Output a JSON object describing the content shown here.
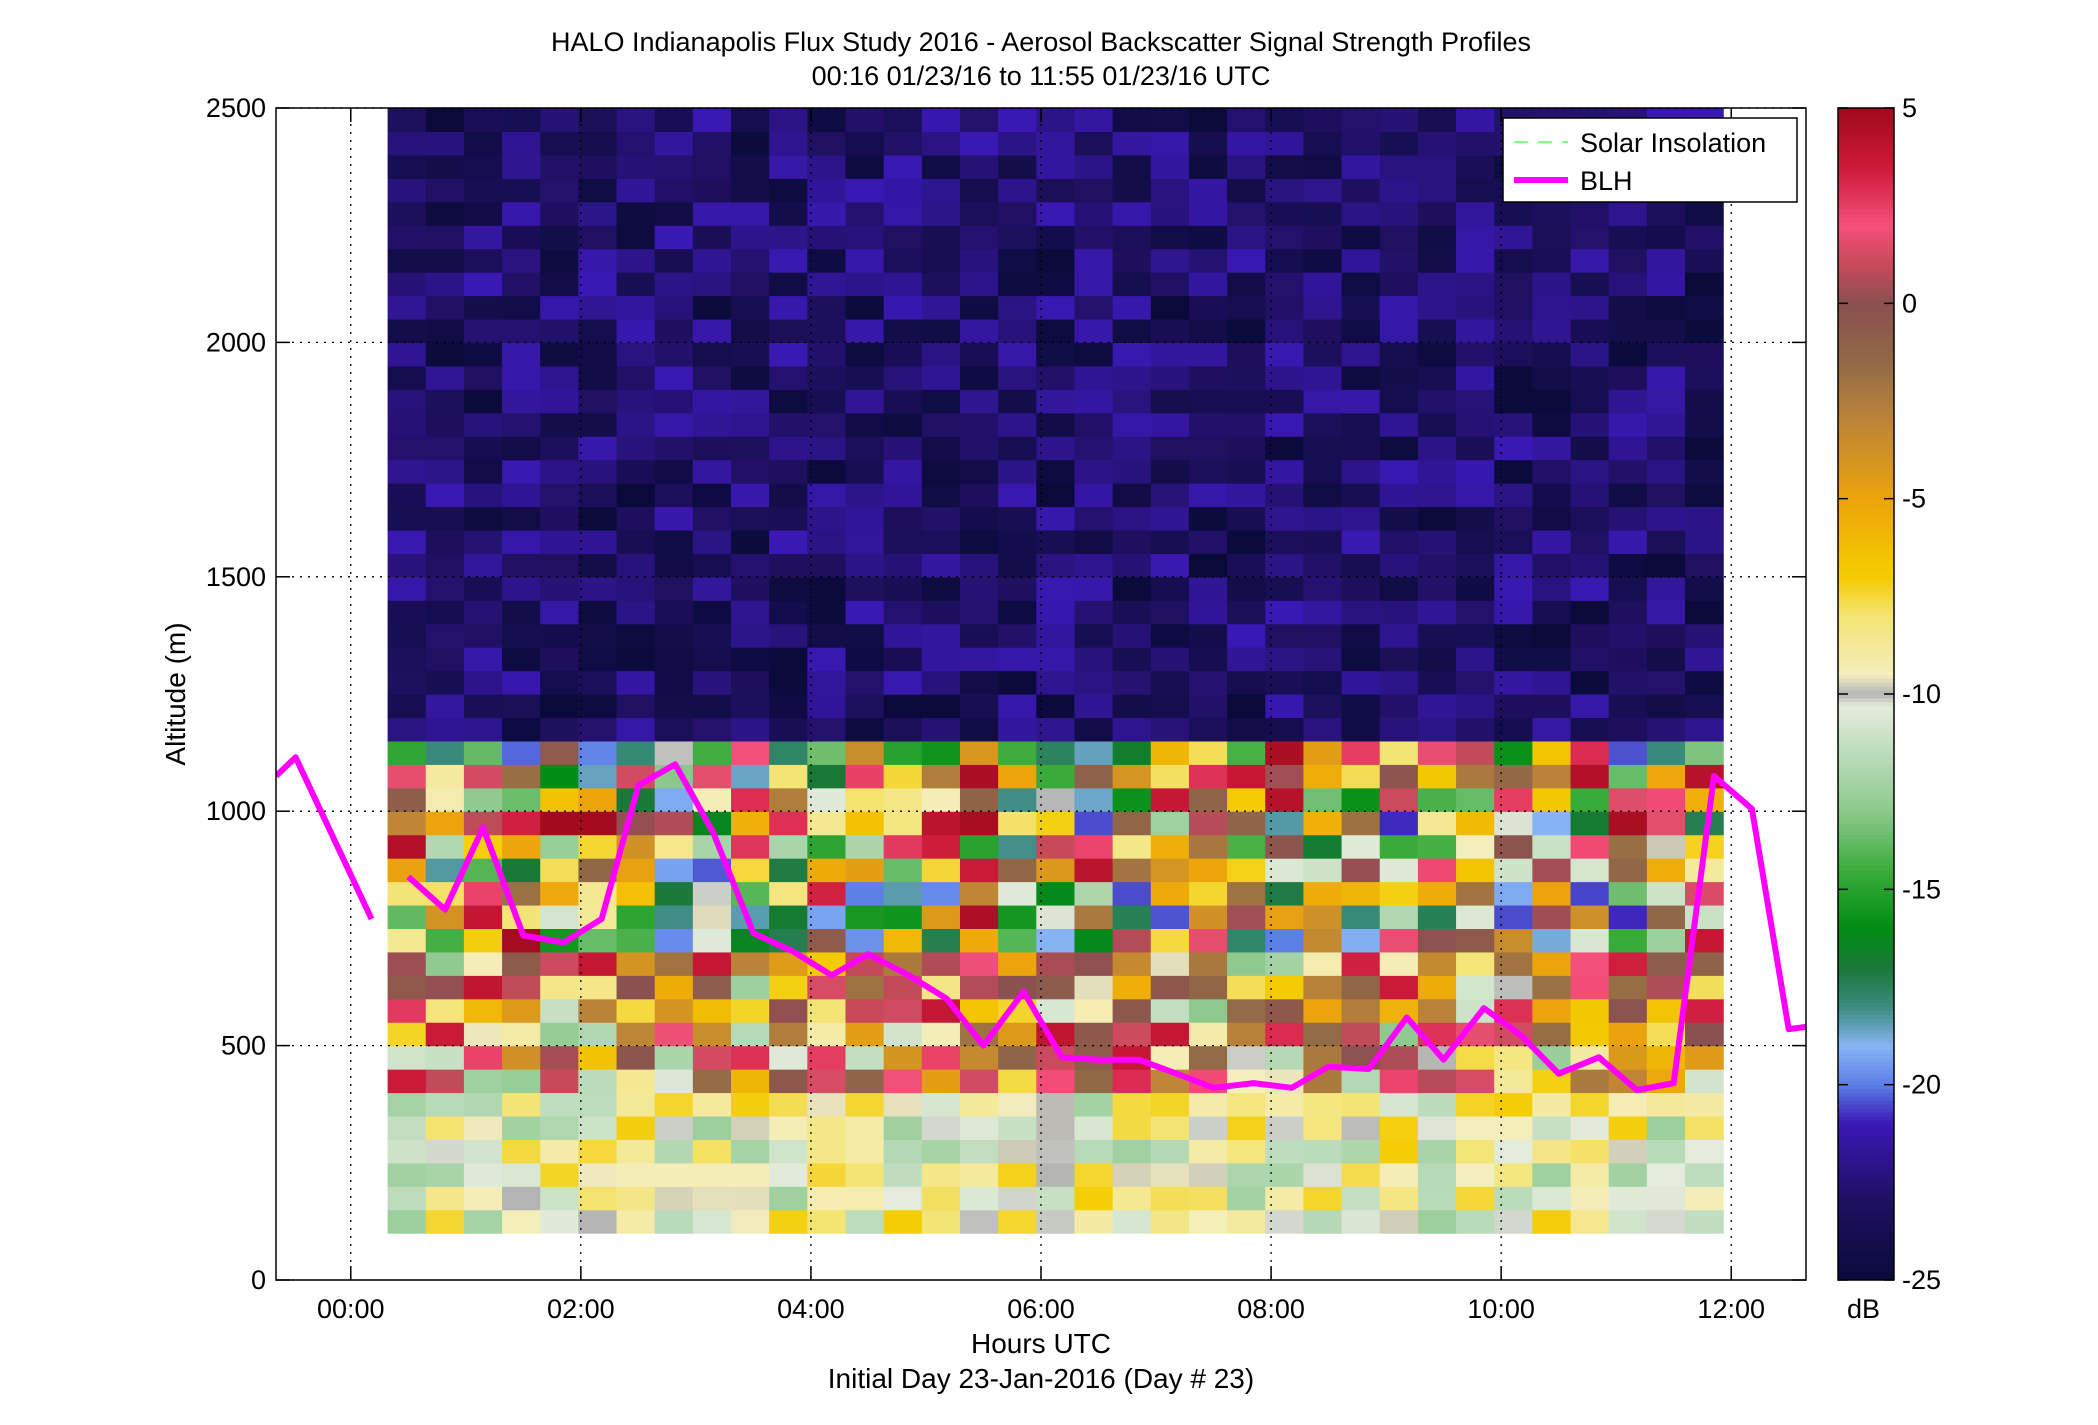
{
  "chart_data": {
    "type": "heatmap",
    "title": "HALO Indianapolis Flux Study 2016 - Aerosol Backscatter Signal Strength Profiles",
    "subtitle": "00:16 01/23/16 to 11:55 01/23/16  UTC",
    "xlabel": "Hours UTC",
    "xlabel2": "Initial Day 23-Jan-2016 (Day # 23)",
    "ylabel": "Altitude (m)",
    "xlim": [
      -0.65,
      12.65
    ],
    "ylim": [
      0,
      2500
    ],
    "x_ticks": [
      {
        "value": 0,
        "label": "00:00"
      },
      {
        "value": 2,
        "label": "02:00"
      },
      {
        "value": 4,
        "label": "04:00"
      },
      {
        "value": 6,
        "label": "06:00"
      },
      {
        "value": 8,
        "label": "08:00"
      },
      {
        "value": 10,
        "label": "10:00"
      },
      {
        "value": 12,
        "label": "12:00"
      }
    ],
    "y_ticks": [
      {
        "value": 0,
        "label": "0"
      },
      {
        "value": 500,
        "label": "500"
      },
      {
        "value": 1000,
        "label": "1000"
      },
      {
        "value": 1500,
        "label": "1500"
      },
      {
        "value": 2000,
        "label": "2000"
      },
      {
        "value": 2500,
        "label": "2500"
      }
    ],
    "grid": true,
    "legend_position": "top-right",
    "colorbar": {
      "min": -25,
      "max": 5,
      "unit": "dB",
      "ticks": [
        {
          "value": 5,
          "label": "5"
        },
        {
          "value": 0,
          "label": "0"
        },
        {
          "value": -5,
          "label": "-5"
        },
        {
          "value": -10,
          "label": "-10"
        },
        {
          "value": -15,
          "label": "-15"
        },
        {
          "value": -20,
          "label": "-20"
        },
        {
          "value": -25,
          "label": "-25"
        }
      ],
      "stops": [
        {
          "value": -25,
          "color": "#0a0a3a"
        },
        {
          "value": -23,
          "color": "#1f1060"
        },
        {
          "value": -21,
          "color": "#3a18b4"
        },
        {
          "value": -20,
          "color": "#5b7ee6"
        },
        {
          "value": -19,
          "color": "#88b4f4"
        },
        {
          "value": -18,
          "color": "#3c8c80"
        },
        {
          "value": -17,
          "color": "#1a7838"
        },
        {
          "value": -16,
          "color": "#008c14"
        },
        {
          "value": -14.5,
          "color": "#3cac3c"
        },
        {
          "value": -13,
          "color": "#8cc88c"
        },
        {
          "value": -11.5,
          "color": "#bcdcbc"
        },
        {
          "value": -10.3,
          "color": "#e6ecdc"
        },
        {
          "value": -10,
          "color": "#b4b4b4"
        },
        {
          "value": -9.5,
          "color": "#f4eebe"
        },
        {
          "value": -8,
          "color": "#f4e474"
        },
        {
          "value": -7,
          "color": "#f4cc00"
        },
        {
          "value": -5,
          "color": "#eca40c"
        },
        {
          "value": -3,
          "color": "#bc8438"
        },
        {
          "value": -1.5,
          "color": "#926a46"
        },
        {
          "value": 0,
          "color": "#8a5050"
        },
        {
          "value": 1,
          "color": "#c84a5a"
        },
        {
          "value": 2,
          "color": "#f4507a"
        },
        {
          "value": 3.5,
          "color": "#cc1a3a"
        },
        {
          "value": 5,
          "color": "#a00a1c"
        }
      ]
    },
    "grid_cells": {
      "x_start": 0.32,
      "x_end": 11.93,
      "columns": 35,
      "y_bin_edges": [
        100,
        150,
        200,
        250,
        300,
        350,
        400,
        450,
        500,
        550,
        600,
        650,
        700,
        750,
        800,
        850,
        900,
        950,
        1000,
        1050,
        1100,
        1150,
        1200,
        1250,
        1300,
        1350,
        1400,
        1450,
        1500,
        1550,
        1600,
        1650,
        1700,
        1750,
        1800,
        1850,
        1900,
        1950,
        2000,
        2050,
        2100,
        2150,
        2200,
        2250,
        2300,
        2350,
        2400,
        2450,
        2500
      ],
      "value_profile": [
        {
          "range_m": [
            100,
            400
          ],
          "dB_low": -12.5,
          "dB_high": -7
        },
        {
          "range_m": [
            400,
            700
          ],
          "dB_low": -13,
          "dB_high": 4
        },
        {
          "range_m": [
            700,
            1150
          ],
          "dB_low": -21,
          "dB_high": 5
        },
        {
          "range_m": [
            1150,
            2500
          ],
          "dB_low": -25,
          "dB_high": -21
        }
      ]
    },
    "series": [
      {
        "name": "Solar Insolation",
        "style": "dashed",
        "color": "#80ff80",
        "x": [],
        "y": []
      },
      {
        "name": "BLH",
        "style": "solid",
        "color": "#ff00ff",
        "segments": [
          {
            "x": [
              -0.65,
              -0.48,
              0.18
            ],
            "y": [
              1075,
              1115,
              770
            ]
          },
          {
            "x": [
              0.5,
              0.82,
              1.15,
              1.5,
              1.85,
              2.18,
              2.5,
              2.82,
              3.15,
              3.5,
              3.85,
              4.18,
              4.5,
              4.85,
              5.18,
              5.5,
              5.85,
              6.18,
              6.5,
              6.85,
              7.18,
              7.5,
              7.85,
              8.18,
              8.5,
              8.85,
              9.18,
              9.5,
              9.85,
              10.18,
              10.5,
              10.85,
              11.18,
              11.5,
              11.85,
              12.18,
              12.5,
              12.65
            ],
            "y": [
              860,
              790,
              965,
              735,
              720,
              770,
              1055,
              1100,
              955,
              740,
              700,
              650,
              695,
              650,
              600,
              500,
              615,
              475,
              470,
              470,
              440,
              410,
              420,
              410,
              455,
              450,
              560,
              470,
              580,
              520,
              440,
              475,
              405,
              420,
              1075,
              1005,
              535,
              540
            ]
          }
        ]
      }
    ]
  }
}
